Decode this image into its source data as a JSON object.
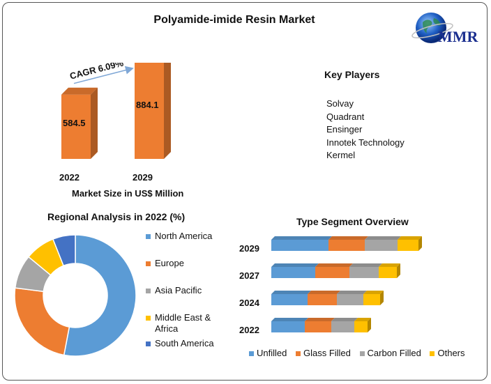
{
  "title": "Polyamide-imide Resin Market",
  "logo": {
    "text": "MMR",
    "icon": "globe-icon"
  },
  "chart_data": [
    {
      "type": "bar",
      "title": "",
      "categories": [
        "2022",
        "2029"
      ],
      "values": [
        584.5,
        884.1
      ],
      "value_labels": [
        "584.5",
        "884.1"
      ],
      "xlabel": "Market Size in US$ Million",
      "annotation": "CAGR 6.09%",
      "ylim": [
        0,
        950
      ],
      "color": "#ed7d31"
    },
    {
      "type": "pie",
      "title": "Regional Analysis in 2022 (%)",
      "categories": [
        "North America",
        "Europe",
        "Asia Pacific",
        "Middle East & Africa",
        "South America"
      ],
      "values": [
        53,
        24,
        9,
        8,
        6
      ],
      "colors": [
        "#5b9bd5",
        "#ed7d31",
        "#a5a5a5",
        "#ffc000",
        "#4472c4"
      ],
      "legend_labels": [
        "North America",
        "Europe",
        "Asia Pacific",
        "Middle East &",
        "Africa",
        "South America"
      ],
      "legend": "right"
    },
    {
      "type": "bar",
      "orientation": "horizontal",
      "stacked": true,
      "title": "Type Segment Overview",
      "categories": [
        "2029",
        "2027",
        "2024",
        "2022"
      ],
      "series": [
        {
          "name": "Unfilled",
          "values": [
            82,
            63,
            52,
            48
          ]
        },
        {
          "name": "Glass Filled",
          "values": [
            52,
            49,
            42,
            38
          ]
        },
        {
          "name": "Carbon Filled",
          "values": [
            47,
            42,
            38,
            33
          ]
        },
        {
          "name": "Others",
          "values": [
            30,
            26,
            24,
            19
          ]
        }
      ],
      "colors": [
        "#5b9bd5",
        "#ed7d31",
        "#a5a5a5",
        "#ffc000"
      ],
      "legend": "bottom"
    }
  ],
  "key_players": {
    "title": "Key Players",
    "items": [
      "Solvay",
      "Quadrant",
      "Ensinger",
      "Innotek Technology",
      "Kermel"
    ]
  }
}
